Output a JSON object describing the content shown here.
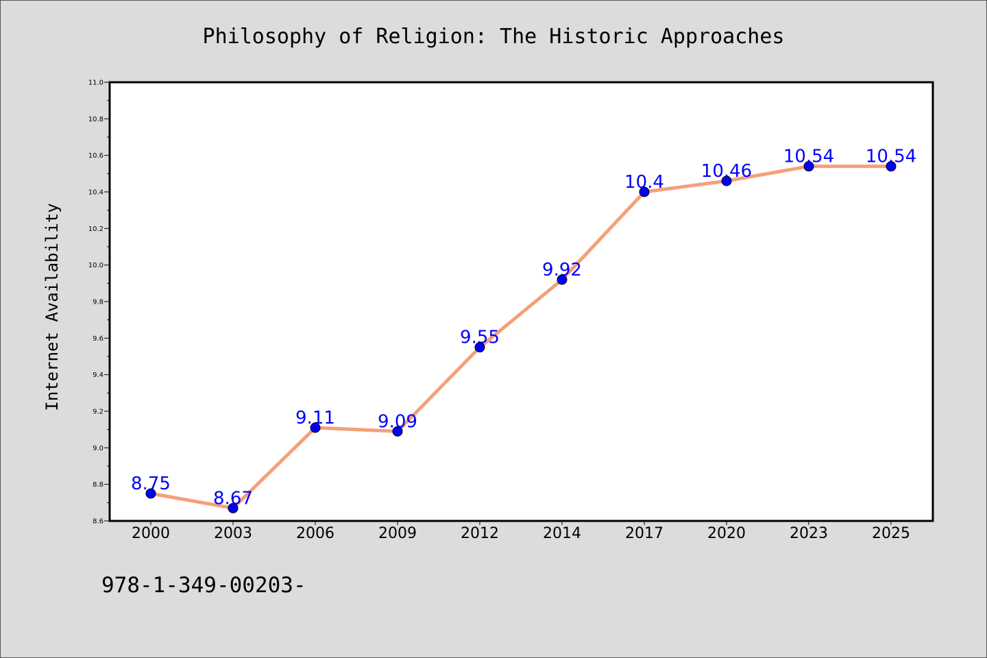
{
  "chart_data": {
    "type": "line",
    "title": "Philosophy of Religion: The Historic Approaches",
    "xlabel": "",
    "ylabel": "Internet Availability",
    "categories": [
      "2000",
      "2003",
      "2006",
      "2009",
      "2012",
      "2014",
      "2017",
      "2020",
      "2023",
      "2025"
    ],
    "series": [
      {
        "values": [
          8.75,
          8.67,
          9.11,
          9.09,
          9.55,
          9.92,
          10.4,
          10.46,
          10.54,
          10.54
        ],
        "data_labels": [
          "8.75",
          "8.67",
          "9.11",
          "9.09",
          "9.55",
          "9.92",
          "10.4",
          "10.46",
          "10.54",
          "10.54"
        ],
        "line_color": "#f4a07a",
        "marker_color": "#0000ff"
      }
    ],
    "ylim": [
      8.6,
      11.0
    ],
    "yticks": [
      "8.6",
      "8.8",
      "9.0",
      "9.2",
      "9.4",
      "9.6",
      "9.8",
      "10.0",
      "10.2",
      "10.4",
      "10.6",
      "10.8",
      "11.0"
    ],
    "grid": false,
    "legend": "none",
    "label_color": "#0000ff"
  },
  "footer_text": "978-1-349-00203-"
}
